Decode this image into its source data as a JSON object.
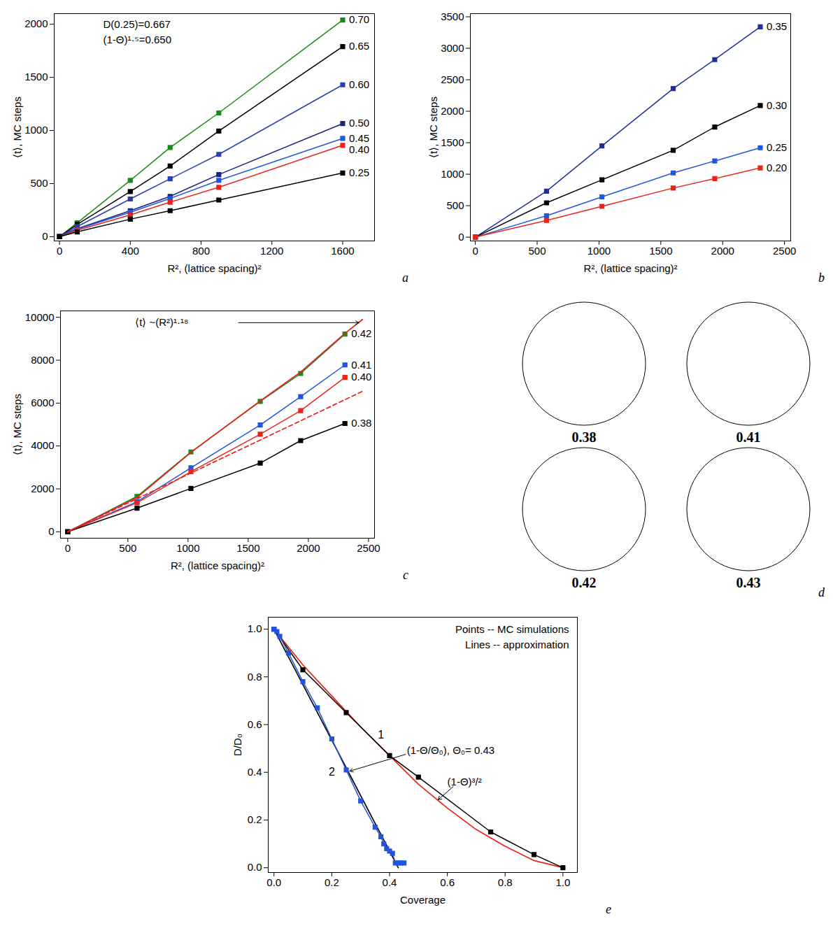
{
  "chart_data": [
    {
      "type": "line",
      "panel_label": "a",
      "x_label": "R², (lattice spacing)²",
      "y_label": "⟨t⟩, MC steps",
      "xlim": [
        -30,
        1780
      ],
      "ylim": [
        -40,
        2100
      ],
      "xticks": [
        0,
        400,
        800,
        1200,
        1600
      ],
      "yticks": [
        0,
        500,
        1000,
        1500,
        2000
      ],
      "annotations": [
        "D(0.25)=0.667",
        "(1-Θ)¹·⁵=0.650"
      ],
      "x": [
        0,
        100,
        400,
        625,
        900,
        1600
      ],
      "series": [
        {
          "name": "0.70",
          "color": "#1a8a1a",
          "marker": "square",
          "line_style": "solid",
          "values": [
            0,
            130,
            530,
            840,
            1165,
            2040
          ]
        },
        {
          "name": "0.65",
          "color": "#000000",
          "marker": "square",
          "line_style": "solid",
          "values": [
            0,
            115,
            425,
            665,
            995,
            1790
          ]
        },
        {
          "name": "0.60",
          "color": "#2a3fb0",
          "marker": "square",
          "line_style": "solid",
          "values": [
            0,
            95,
            355,
            545,
            775,
            1430
          ]
        },
        {
          "name": "0.50",
          "color": "#1a237e",
          "marker": "square",
          "line_style": "solid",
          "values": [
            0,
            75,
            245,
            380,
            585,
            1065
          ]
        },
        {
          "name": "0.45",
          "color": "#2255dd",
          "marker": "square",
          "line_style": "solid",
          "values": [
            0,
            70,
            230,
            360,
            530,
            925
          ]
        },
        {
          "name": "0.40",
          "color": "#e8231a",
          "marker": "square",
          "line_style": "solid",
          "values": [
            0,
            60,
            205,
            325,
            465,
            860
          ]
        },
        {
          "name": "0.25",
          "color": "#000000",
          "marker": "square",
          "line_style": "solid",
          "values": [
            0,
            45,
            165,
            245,
            345,
            600
          ]
        }
      ]
    },
    {
      "type": "line",
      "panel_label": "b",
      "x_label": "R², (lattice spacing)²",
      "y_label": "⟨t⟩, MC steps",
      "xlim": [
        -40,
        2550
      ],
      "ylim": [
        -60,
        3550
      ],
      "xticks": [
        0,
        500,
        1000,
        1500,
        2000,
        2500
      ],
      "yticks": [
        0,
        500,
        1000,
        1500,
        2000,
        2500,
        3000,
        3500
      ],
      "x": [
        0,
        576,
        1024,
        1600,
        1936,
        2304
      ],
      "series": [
        {
          "name": "0.35",
          "color": "#1f2fa0",
          "marker": "square",
          "line_style": "solid",
          "values": [
            0,
            730,
            1450,
            2360,
            2820,
            3340
          ]
        },
        {
          "name": "0.30",
          "color": "#000000",
          "marker": "square",
          "line_style": "solid",
          "values": [
            0,
            545,
            910,
            1380,
            1750,
            2090
          ]
        },
        {
          "name": "0.25",
          "color": "#2255dd",
          "marker": "square",
          "line_style": "solid",
          "values": [
            0,
            340,
            640,
            1020,
            1210,
            1420
          ]
        },
        {
          "name": "0.20",
          "color": "#e8231a",
          "marker": "square",
          "line_style": "solid",
          "values": [
            0,
            265,
            490,
            780,
            930,
            1100
          ]
        }
      ]
    },
    {
      "type": "line",
      "panel_label": "c",
      "x_label": "R², (lattice spacing)²",
      "y_label": "⟨t⟩, MC steps",
      "xlim": [
        -60,
        2550
      ],
      "ylim": [
        -300,
        10300
      ],
      "xticks": [
        0,
        500,
        1000,
        1500,
        2000,
        2500
      ],
      "yticks": [
        0,
        2000,
        4000,
        6000,
        8000,
        10000
      ],
      "annotations": [
        "⟨t⟩ ~(R²)¹·¹⁸"
      ],
      "x": [
        0,
        576,
        1024,
        1600,
        1936,
        2304
      ],
      "series": [
        {
          "name": "0.42",
          "color": "#1a8a1a",
          "marker": "square",
          "line_style": "solid",
          "values": [
            0,
            1650,
            3720,
            6080,
            7380,
            9220
          ]
        },
        {
          "name": "0.41",
          "color": "#2255dd",
          "marker": "square",
          "line_style": "solid",
          "values": [
            0,
            1400,
            2980,
            4980,
            6300,
            7780
          ]
        },
        {
          "name": "0.40",
          "color": "#e8231a",
          "marker": "square",
          "line_style": "solid",
          "values": [
            0,
            1350,
            2800,
            4550,
            5650,
            7200
          ]
        },
        {
          "name": "0.38",
          "color": "#000000",
          "marker": "square",
          "line_style": "solid",
          "values": [
            0,
            1100,
            2020,
            3200,
            4250,
            5050
          ]
        },
        {
          "color": "#e8231a",
          "marker": "none",
          "line_style": "solid",
          "x": [
            0,
            576,
            1024,
            1600,
            1936,
            2304,
            2450
          ],
          "values": [
            0,
            1600,
            3700,
            6100,
            7450,
            9250,
            9900
          ]
        },
        {
          "color": "#e8231a",
          "marker": "none",
          "line_style": "dashed",
          "x": [
            0,
            2450
          ],
          "values": [
            0,
            6550
          ]
        }
      ]
    },
    {
      "type": "line",
      "panel_label": "e",
      "x_label": "Coverage",
      "y_label": "D/D₀",
      "xlim": [
        -0.02,
        1.05
      ],
      "ylim": [
        -0.02,
        1.05
      ],
      "xticks": [
        {
          "value": 0,
          "label": "0.0"
        },
        0.2,
        0.4,
        0.6,
        0.8,
        {
          "value": 1,
          "label": "1.0"
        }
      ],
      "yticks": [
        {
          "value": 0,
          "label": "0.0"
        },
        0.2,
        0.4,
        0.6,
        0.8,
        {
          "value": 1,
          "label": "1.0"
        }
      ],
      "annotations": [
        "Points -- MC simulations",
        "Lines -- approximation",
        "(1-Θ/Θ₀), Θ₀= 0.43",
        "(1-Θ)³/²"
      ],
      "series": [
        {
          "color": "#e8231a",
          "marker": "none",
          "line_style": "solid",
          "x": [
            0,
            0.1,
            0.2,
            0.3,
            0.4,
            0.5,
            0.6,
            0.7,
            0.8,
            0.9,
            1.0
          ],
          "values": [
            1.0,
            0.85,
            0.72,
            0.59,
            0.47,
            0.35,
            0.25,
            0.16,
            0.09,
            0.03,
            0.0
          ]
        },
        {
          "name": "1",
          "color": "#000000",
          "marker": "square",
          "line_style": "solid",
          "x": [
            0,
            0.1,
            0.25,
            0.4,
            0.5,
            0.75,
            0.9,
            1.0
          ],
          "values": [
            1.0,
            0.83,
            0.65,
            0.47,
            0.38,
            0.15,
            0.055,
            0.0
          ]
        },
        {
          "color": "#000000",
          "marker": "none",
          "line_style": "solid",
          "x": [
            0,
            0.43
          ],
          "values": [
            1.0,
            0.0
          ]
        },
        {
          "name": "2",
          "color": "#2255dd",
          "marker": "square",
          "line_style": "solid",
          "x": [
            0,
            0.01,
            0.02,
            0.05,
            0.1,
            0.15,
            0.2,
            0.25,
            0.3,
            0.35,
            0.37,
            0.38,
            0.39,
            0.4,
            0.41,
            0.42,
            0.43,
            0.44,
            0.45
          ],
          "values": [
            1.0,
            0.99,
            0.97,
            0.9,
            0.78,
            0.67,
            0.54,
            0.41,
            0.28,
            0.17,
            0.13,
            0.1,
            0.08,
            0.07,
            0.06,
            0.02,
            0.02,
            0.02,
            0.02
          ]
        }
      ]
    }
  ],
  "cluster_snapshots": {
    "panel_label": "d",
    "labels": [
      "0.38",
      "0.41",
      "0.42",
      "0.43"
    ]
  }
}
